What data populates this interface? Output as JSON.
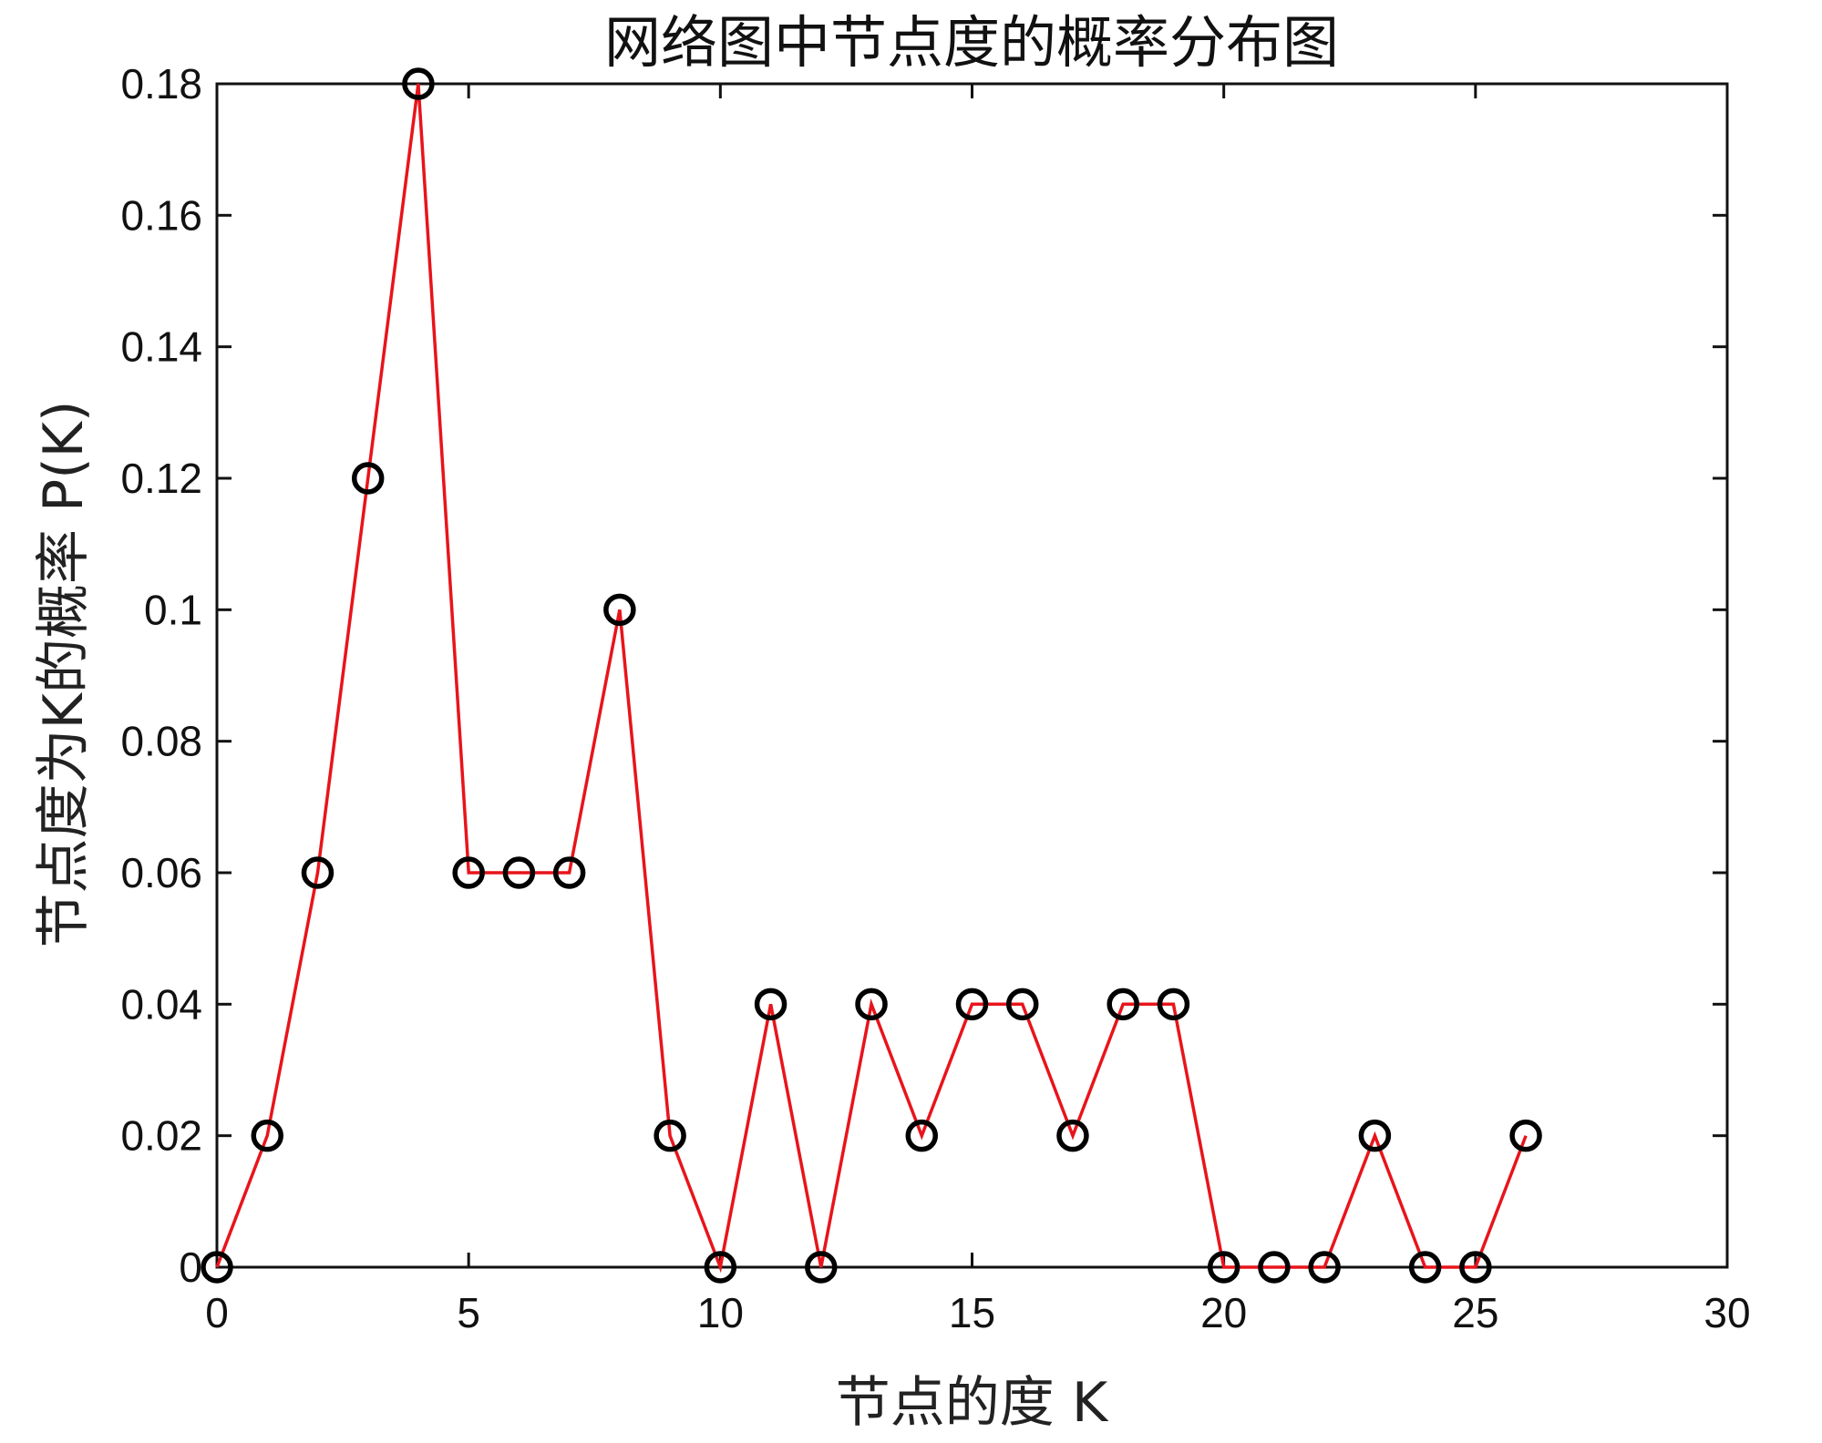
{
  "chart_data": {
    "type": "line",
    "title": "网络图中节点度的概率分布图",
    "xlabel": "节点的度 K",
    "ylabel": "节点度为K的概率 P(K)",
    "xlim": [
      0,
      30
    ],
    "ylim": [
      0,
      0.18
    ],
    "xticks": [
      0,
      5,
      10,
      15,
      20,
      25,
      30
    ],
    "xtick_labels": [
      "0",
      "5",
      "10",
      "15",
      "20",
      "25",
      "30"
    ],
    "yticks": [
      0,
      0.02,
      0.04,
      0.06,
      0.08,
      0.1,
      0.12,
      0.14,
      0.16,
      0.18
    ],
    "ytick_labels": [
      "0",
      "0.02",
      "0.04",
      "0.06",
      "0.08",
      "0.1",
      "0.12",
      "0.14",
      "0.16",
      "0.18"
    ],
    "grid": false,
    "x": [
      0,
      1,
      2,
      3,
      4,
      5,
      6,
      7,
      8,
      9,
      10,
      11,
      12,
      13,
      14,
      15,
      16,
      17,
      18,
      19,
      20,
      21,
      22,
      23,
      24,
      25,
      26
    ],
    "series": [
      {
        "values": [
          0,
          0.02,
          0.06,
          0.12,
          0.18,
          0.06,
          0.06,
          0.06,
          0.1,
          0.02,
          0,
          0.04,
          0,
          0.04,
          0.02,
          0.04,
          0.04,
          0.02,
          0.04,
          0.04,
          0,
          0,
          0,
          0.02,
          0,
          0,
          0.02
        ],
        "line_color": "#e8141b",
        "marker": "circle",
        "marker_color": "#000000"
      }
    ]
  }
}
